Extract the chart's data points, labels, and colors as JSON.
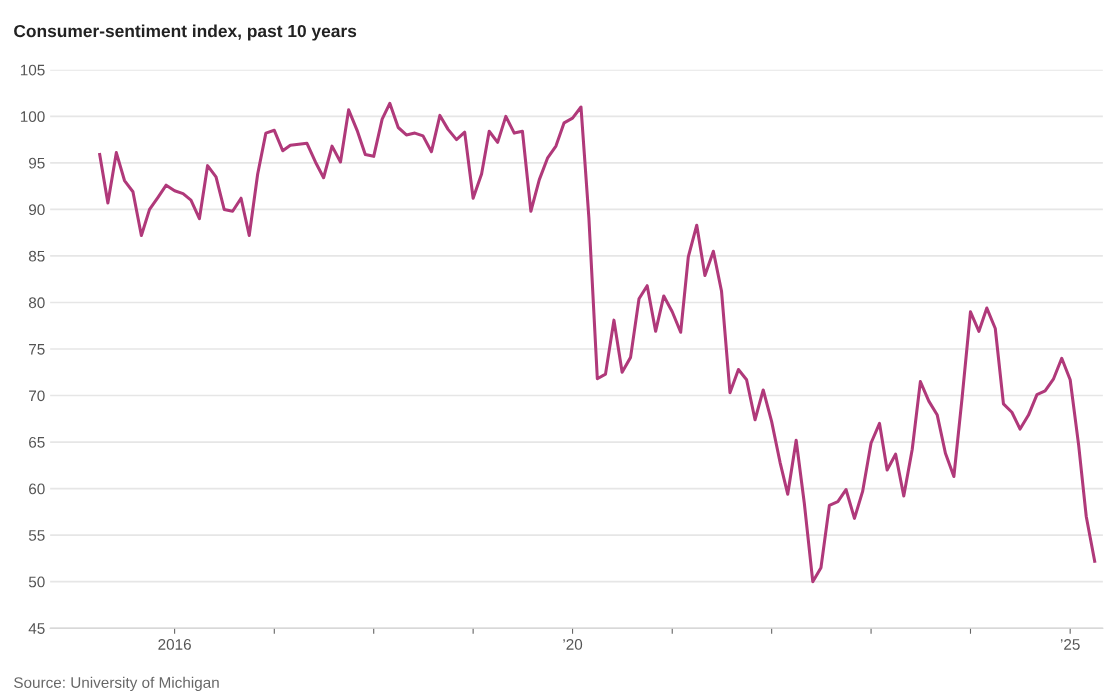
{
  "chart_data": {
    "type": "line",
    "title": "Consumer-sentiment index, past 10 years",
    "x": [
      "2015-04",
      "2015-05",
      "2015-06",
      "2015-07",
      "2015-08",
      "2015-09",
      "2015-10",
      "2015-11",
      "2015-12",
      "2016-01",
      "2016-02",
      "2016-03",
      "2016-04",
      "2016-05",
      "2016-06",
      "2016-07",
      "2016-08",
      "2016-09",
      "2016-10",
      "2016-11",
      "2016-12",
      "2017-01",
      "2017-02",
      "2017-03",
      "2017-04",
      "2017-05",
      "2017-06",
      "2017-07",
      "2017-08",
      "2017-09",
      "2017-10",
      "2017-11",
      "2017-12",
      "2018-01",
      "2018-02",
      "2018-03",
      "2018-04",
      "2018-05",
      "2018-06",
      "2018-07",
      "2018-08",
      "2018-09",
      "2018-10",
      "2018-11",
      "2018-12",
      "2019-01",
      "2019-02",
      "2019-03",
      "2019-04",
      "2019-05",
      "2019-06",
      "2019-07",
      "2019-08",
      "2019-09",
      "2019-10",
      "2019-11",
      "2019-12",
      "2020-01",
      "2020-02",
      "2020-03",
      "2020-04",
      "2020-05",
      "2020-06",
      "2020-07",
      "2020-08",
      "2020-09",
      "2020-10",
      "2020-11",
      "2020-12",
      "2021-01",
      "2021-02",
      "2021-03",
      "2021-04",
      "2021-05",
      "2021-06",
      "2021-07",
      "2021-08",
      "2021-09",
      "2021-10",
      "2021-11",
      "2021-12",
      "2022-01",
      "2022-02",
      "2022-03",
      "2022-04",
      "2022-05",
      "2022-06",
      "2022-07",
      "2022-08",
      "2022-09",
      "2022-10",
      "2022-11",
      "2022-12",
      "2023-01",
      "2023-02",
      "2023-03",
      "2023-04",
      "2023-05",
      "2023-06",
      "2023-07",
      "2023-08",
      "2023-09",
      "2023-10",
      "2023-11",
      "2023-12",
      "2024-01",
      "2024-02",
      "2024-03",
      "2024-04",
      "2024-05",
      "2024-06",
      "2024-07",
      "2024-08",
      "2024-09",
      "2024-10",
      "2024-11",
      "2024-12",
      "2025-01",
      "2025-02",
      "2025-03",
      "2025-04"
    ],
    "series": [
      {
        "color": "#b0397a",
        "values": [
          95.9,
          90.7,
          96.1,
          93.1,
          91.9,
          87.2,
          90.0,
          91.3,
          92.6,
          92.0,
          91.7,
          91.0,
          89.0,
          94.7,
          93.5,
          90.0,
          89.8,
          91.2,
          87.2,
          93.8,
          98.2,
          98.5,
          96.3,
          96.9,
          97.0,
          97.1,
          95.1,
          93.4,
          96.8,
          95.1,
          100.7,
          98.5,
          95.9,
          95.7,
          99.7,
          101.4,
          98.8,
          98.0,
          98.2,
          97.9,
          96.2,
          100.1,
          98.6,
          97.5,
          98.3,
          91.2,
          93.8,
          98.4,
          97.2,
          100.0,
          98.2,
          98.4,
          89.8,
          93.2,
          95.5,
          96.8,
          99.3,
          99.8,
          101.0,
          89.1,
          71.8,
          72.3,
          78.1,
          72.5,
          74.1,
          80.4,
          81.8,
          76.9,
          80.7,
          79.0,
          76.8,
          84.9,
          88.3,
          82.9,
          85.5,
          81.2,
          70.3,
          72.8,
          71.7,
          67.4,
          70.6,
          67.2,
          62.8,
          59.4,
          65.2,
          58.4,
          50.0,
          51.5,
          58.2,
          58.6,
          59.9,
          56.8,
          59.7,
          64.9,
          67.0,
          62.0,
          63.7,
          59.2,
          64.2,
          71.5,
          69.4,
          67.9,
          63.8,
          61.3,
          69.7,
          79.0,
          76.9,
          79.4,
          77.2,
          69.1,
          68.2,
          66.4,
          67.9,
          70.1,
          70.5,
          71.8,
          74.0,
          71.7,
          64.7,
          57.0,
          52.2
        ]
      }
    ],
    "xlim": [
      "2014-10",
      "2025-05"
    ],
    "xticks": [
      {
        "value": "2016",
        "label": "2016"
      },
      {
        "value": "2017",
        "label": null
      },
      {
        "value": "2018",
        "label": null
      },
      {
        "value": "2019",
        "label": null
      },
      {
        "value": "2020",
        "label": "’20"
      },
      {
        "value": "2021",
        "label": null
      },
      {
        "value": "2022",
        "label": null
      },
      {
        "value": "2023",
        "label": null
      },
      {
        "value": "2024",
        "label": null
      },
      {
        "value": "2025",
        "label": "’25"
      }
    ],
    "ylim": [
      45,
      105
    ],
    "yticks": [
      45,
      50,
      55,
      60,
      65,
      70,
      75,
      80,
      85,
      90,
      95,
      100,
      105
    ],
    "grid": "y",
    "marker": "none",
    "line_style": "solid",
    "annotations": [
      "Source: University of Michigan"
    ]
  }
}
